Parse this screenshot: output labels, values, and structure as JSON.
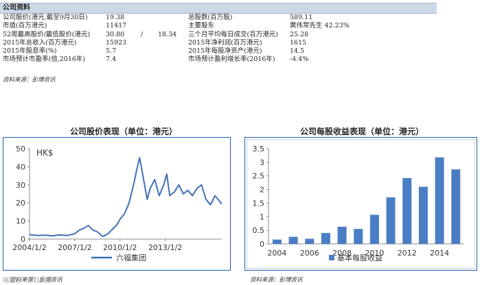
{
  "section_title": "公司资料",
  "info_rows": [
    {
      "l1": "公司股价(港元,截至9月30日)",
      "v1": "19.38",
      "l2": "总股数(百万股)",
      "v2": "589.11"
    },
    {
      "l1": "市值(百万港元)",
      "v1": "11417",
      "l2": "主要股东",
      "v2": "黄伟常先生 42.23%"
    },
    {
      "l1": "52周最高股价/最低股价(港元)",
      "v1": "30.80",
      "sep": "/",
      "v1b": "18.34",
      "l2": "三个月平均每日成交(百万港元)",
      "v2": "25.28"
    },
    {
      "l1": "2015年总收入(百万港元)",
      "v1": "15923",
      "l2": "2015年净利润(百万港元)",
      "v2": "1615"
    },
    {
      "l1": "2015年股息率(%)",
      "v1": "5.7",
      "l2": "2015年每股净资产(港元)",
      "v2": "14.5"
    },
    {
      "l1": "市场预计市盈率(倍,2016年)",
      "v1": "7.4",
      "l2": "市场预计盈利增长率(2016年)",
      "v2": "-4.4%"
    }
  ],
  "source_note_top": "资料来源：彭博资讯",
  "left_chart_title": "公司股价表现（单位：港元）",
  "right_chart_title": "公司每股收益表现（单位：港元）",
  "source_note_left": "资料来源：彭博资讯",
  "source_note_right": "资料来源：彭博资讯",
  "watermark": "格隆汇 · 今日头条",
  "colors": {
    "line": "#3f70b8",
    "bar": "#4a7ec4",
    "frame": "#1a5fa8",
    "header": "#cdd8e6"
  },
  "chart_data": [
    {
      "type": "line",
      "unit_label": "HK$",
      "xlabel": "",
      "ylabel": "",
      "ylim": [
        0,
        50
      ],
      "yticks": [
        0,
        10,
        20,
        30,
        40,
        50
      ],
      "xtick_labels": [
        "2004/1/2",
        "2007/1/2",
        "2010/1/2",
        "2013/1/2"
      ],
      "xtick_years": [
        2004,
        2007,
        2010,
        2013
      ],
      "xlim": [
        2004,
        2016.75
      ],
      "grid": false,
      "legend_position": "bottom",
      "series": [
        {
          "name": "六福集团",
          "x": [
            2004.0,
            2004.5,
            2005.0,
            2005.5,
            2006.0,
            2006.5,
            2007.0,
            2007.3,
            2007.6,
            2007.9,
            2008.2,
            2008.5,
            2008.8,
            2008.9,
            2009.2,
            2009.5,
            2009.8,
            2010.0,
            2010.3,
            2010.6,
            2010.9,
            2011.1,
            2011.3,
            2011.5,
            2011.8,
            2012.0,
            2012.3,
            2012.6,
            2012.9,
            2013.1,
            2013.3,
            2013.6,
            2013.9,
            2014.2,
            2014.5,
            2014.8,
            2015.1,
            2015.4,
            2015.7,
            2016.0,
            2016.3,
            2016.6,
            2016.75
          ],
          "y": [
            2.5,
            2.0,
            2.2,
            1.8,
            2.3,
            2.0,
            3.0,
            5.0,
            6.0,
            7.5,
            5.0,
            4.0,
            1.8,
            1.5,
            3.0,
            5.5,
            8.0,
            11.0,
            14.0,
            20.0,
            30.0,
            38.0,
            45.0,
            36.0,
            22.0,
            28.0,
            33.0,
            24.0,
            30.0,
            36.0,
            24.0,
            26.0,
            30.0,
            25.0,
            27.0,
            24.0,
            28.0,
            30.0,
            22.0,
            19.0,
            24.0,
            21.0,
            19.4
          ]
        }
      ]
    },
    {
      "type": "bar",
      "xlabel": "",
      "ylabel": "",
      "ylim": [
        0,
        3.5
      ],
      "yticks": [
        0,
        0.5,
        1,
        1.5,
        2,
        2.5,
        3,
        3.5
      ],
      "categories": [
        "2004",
        "2005",
        "2006",
        "2007",
        "2008",
        "2009",
        "2010",
        "2011",
        "2012",
        "2013",
        "2014",
        "2015"
      ],
      "xtick_labels": [
        "2004",
        "2006",
        "2008",
        "2010",
        "2012",
        "2014"
      ],
      "grid": false,
      "legend_position": "bottom",
      "series": [
        {
          "name": "基本每股收益",
          "values": [
            0.16,
            0.26,
            0.19,
            0.4,
            0.63,
            0.55,
            1.07,
            1.71,
            2.42,
            2.1,
            3.18,
            2.74
          ]
        }
      ]
    }
  ]
}
